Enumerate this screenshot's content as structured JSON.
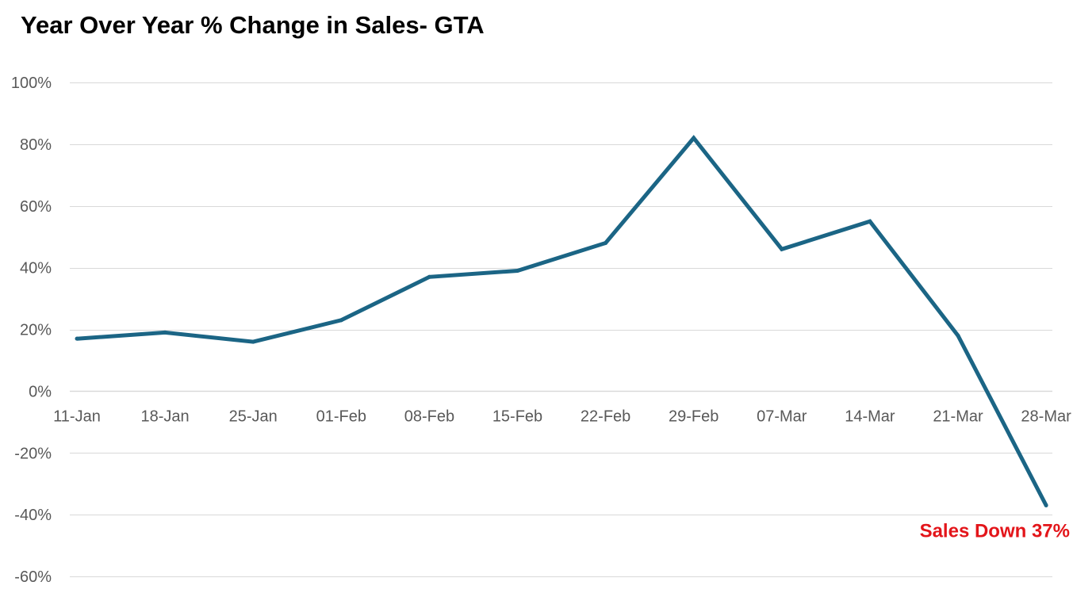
{
  "chart_data": {
    "type": "line",
    "title": "Year Over Year % Change in Sales- GTA",
    "xlabel": "",
    "ylabel": "",
    "categories": [
      "11-Jan",
      "18-Jan",
      "25-Jan",
      "01-Feb",
      "08-Feb",
      "15-Feb",
      "22-Feb",
      "29-Feb",
      "07-Mar",
      "14-Mar",
      "21-Mar",
      "28-Mar"
    ],
    "series": [
      {
        "values": [
          17,
          19,
          16,
          23,
          37,
          39,
          48,
          82,
          46,
          55,
          18,
          -37
        ],
        "color": "#1B6585"
      }
    ],
    "ylim": [
      -60,
      100
    ],
    "y_ticks": [
      100,
      80,
      60,
      40,
      20,
      0,
      -20,
      -40,
      -60
    ],
    "y_tick_labels": [
      "100%",
      "80%",
      "60%",
      "40%",
      "20%",
      "0%",
      "-20%",
      "-40%",
      "-60%"
    ],
    "grid": true,
    "legend": "none",
    "annotation": {
      "text": "Sales Down 37%",
      "color": "#E3151A"
    },
    "colors": {
      "grid": "#D9D9D9",
      "axis": "#D9D9D9",
      "tick_text": "#595959",
      "title_text": "#000000"
    }
  }
}
